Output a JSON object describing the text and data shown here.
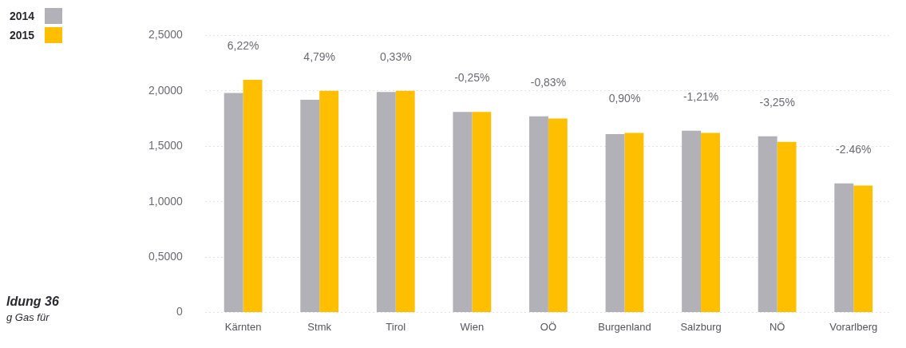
{
  "chart_data": {
    "type": "bar",
    "categories": [
      "Kärnten",
      "Stmk",
      "Tirol",
      "Wien",
      "OÖ",
      "Burgenland",
      "Salzburg",
      "NÖ",
      "Vorarlberg"
    ],
    "series": [
      {
        "name": "2014",
        "color": "#b3b1b8",
        "values": [
          1.98,
          1.92,
          1.99,
          1.81,
          1.77,
          1.61,
          1.64,
          1.59,
          1.165
        ]
      },
      {
        "name": "2015",
        "color": "#fdbf00",
        "values": [
          2.1,
          2.0,
          2.0,
          1.81,
          1.75,
          1.62,
          1.62,
          1.54,
          1.145
        ]
      }
    ],
    "ylim": [
      0,
      2.5
    ],
    "yticks": [
      0,
      {
        "value": 0.5,
        "label": "0,5000"
      },
      {
        "value": 1,
        "label": "1,0000"
      },
      {
        "value": 1.5,
        "label": "1,5000"
      },
      {
        "value": 2,
        "label": "2,0000"
      },
      {
        "value": 2.5,
        "label": "2,5000"
      }
    ],
    "grid": "y",
    "legend": "top left",
    "annotations": [
      "6,22%",
      "4,79%",
      "0,33%",
      "-0,25%",
      "-0,83%",
      "0,90%",
      "-1,21%",
      "-3,25%",
      "-2.46%",
      "ldung 36",
      "g Gas für"
    ]
  }
}
